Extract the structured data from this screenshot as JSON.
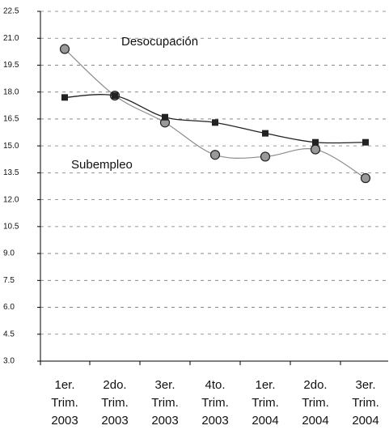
{
  "chart_data": {
    "type": "line",
    "categories": [
      [
        "1er.",
        "Trim.",
        "2003"
      ],
      [
        "2do.",
        "Trim.",
        "2003"
      ],
      [
        "3er.",
        "Trim.",
        "2003"
      ],
      [
        "4to.",
        "Trim.",
        "2003"
      ],
      [
        "1er.",
        "Trim.",
        "2004"
      ],
      [
        "2do.",
        "Trim.",
        "2004"
      ],
      [
        "3er.",
        "Trim.",
        "2004"
      ]
    ],
    "series": [
      {
        "name": "Desocupación",
        "color": "#8c8c8c",
        "marker": "circle",
        "values": [
          20.4,
          17.8,
          16.3,
          14.5,
          14.4,
          14.8,
          13.2
        ]
      },
      {
        "name": "Subempleo",
        "color": "#222222",
        "marker": "square",
        "values": [
          17.7,
          17.8,
          16.6,
          16.3,
          15.7,
          15.2,
          15.2
        ]
      }
    ],
    "ylim": [
      3,
      22.5
    ],
    "yticks": [
      {
        "value": 3,
        "label": "3.0"
      },
      4.5,
      {
        "value": 6,
        "label": "6.0"
      },
      7.5,
      {
        "value": 9,
        "label": "9.0"
      },
      10.5,
      {
        "value": 12,
        "label": "12.0"
      },
      13.5,
      {
        "value": 15,
        "label": "15.0"
      },
      16.5,
      {
        "value": 18,
        "label": "18.0"
      },
      19.5,
      {
        "value": 21,
        "label": "21.0"
      },
      22.5
    ],
    "grid": true,
    "smooth": true
  }
}
